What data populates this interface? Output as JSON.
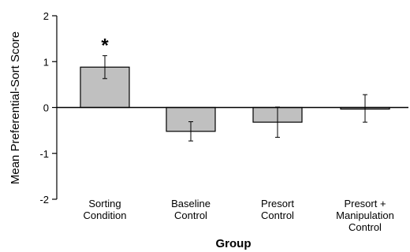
{
  "chart_data": {
    "type": "bar",
    "categories": [
      [
        "Sorting",
        "Condition"
      ],
      [
        "Baseline",
        "Control"
      ],
      [
        "Presort",
        "Control"
      ],
      [
        "Presort +",
        "Manipulation",
        "Control"
      ]
    ],
    "values": [
      0.88,
      -0.52,
      -0.32,
      -0.02
    ],
    "error": [
      0.25,
      0.21,
      0.33,
      0.3
    ],
    "ylim": [
      -2,
      2
    ],
    "yticks": [
      "2",
      "1",
      "0",
      "-1",
      "-2"
    ],
    "xlabel": "Group",
    "ylabel": "Mean Preferential-Sort Score",
    "annotation": "*",
    "bar_color": "#c0c0c0",
    "grid": false
  }
}
